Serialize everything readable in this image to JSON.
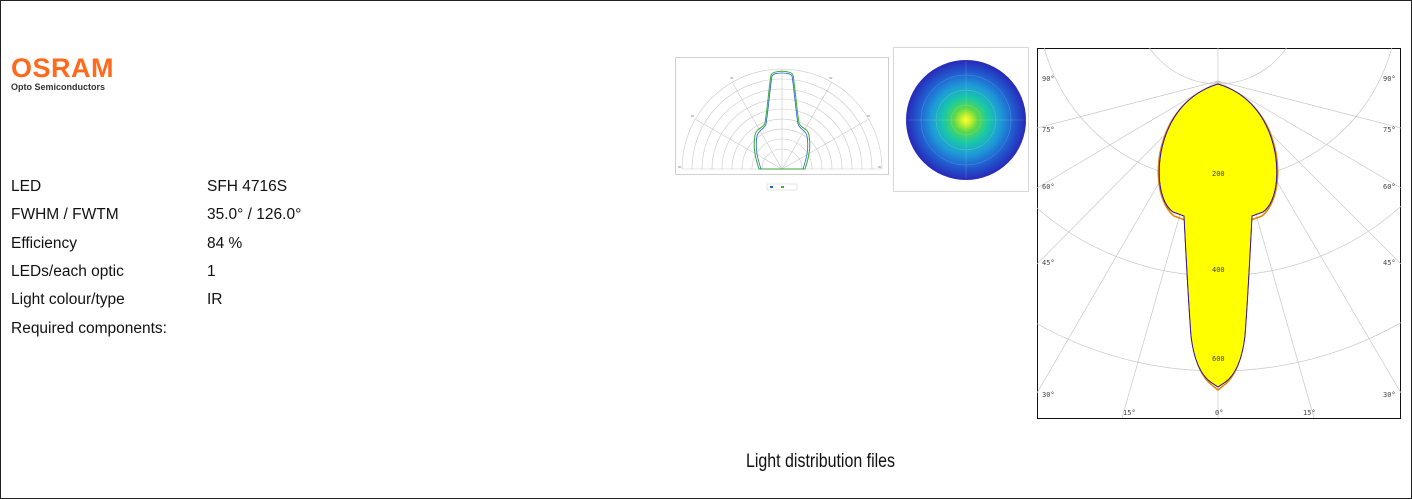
{
  "brand": {
    "name": "OSRAM",
    "subtitle": "Opto Semiconductors",
    "color": "#ff6a1c"
  },
  "specs": [
    {
      "label": "LED",
      "value": "SFH 4716S"
    },
    {
      "label": "FWHM / FWTM",
      "value": "35.0° / 126.0°"
    },
    {
      "label": "Efficiency",
      "value": "84 %"
    },
    {
      "label": "LEDs/each optic",
      "value": "1"
    },
    {
      "label": "Light colour/type",
      "value": "IR"
    },
    {
      "label": "Required components:",
      "value": ""
    }
  ],
  "polar_plot": {
    "angle_labels_left": [
      "90°",
      "75°",
      "60°",
      "45°",
      "30°"
    ],
    "angle_labels_right": [
      "90°",
      "75°",
      "60°",
      "45°",
      "30°"
    ],
    "bottom_labels": [
      "15°",
      "0°",
      "15°"
    ],
    "radial_labels": [
      "200",
      "400",
      "600"
    ],
    "fill_color": "#ffff00",
    "outline_colors": [
      "#1a1aa8",
      "#c81432",
      "#e08a00"
    ]
  },
  "caption": "Light distribution files"
}
